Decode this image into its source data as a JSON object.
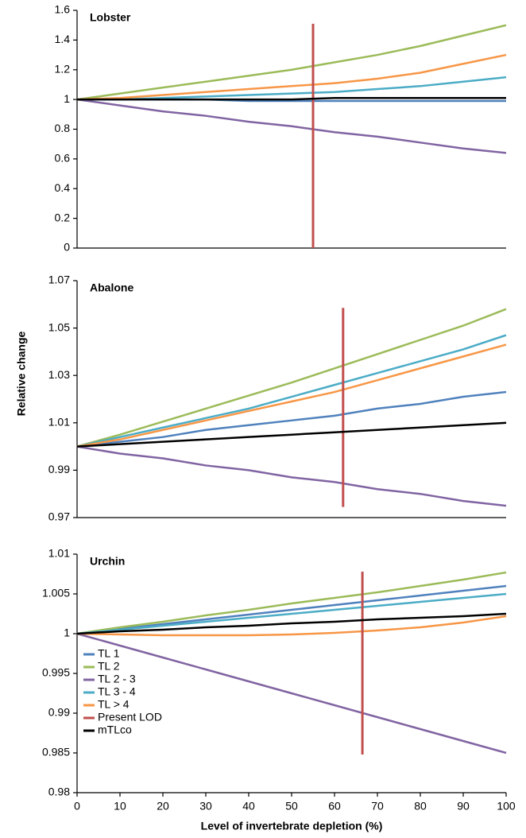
{
  "chart_data": [
    {
      "type": "line",
      "title": "Lobster",
      "x": [
        0,
        10,
        20,
        30,
        40,
        50,
        60,
        70,
        80,
        90,
        100
      ],
      "xlim": [
        0,
        100
      ],
      "ylim": [
        0,
        1.6
      ],
      "yticks": [
        0,
        0.2,
        0.4,
        0.6,
        0.8,
        1,
        1.2,
        1.4,
        1.6
      ],
      "series": [
        {
          "name": "TL 1",
          "color": "#4f81bd",
          "values": [
            1.0,
            1.0,
            1.0,
            1.0,
            0.99,
            0.99,
            0.99,
            0.99,
            0.99,
            0.99,
            0.99
          ]
        },
        {
          "name": "TL 2",
          "color": "#9bbb59",
          "values": [
            1.0,
            1.04,
            1.08,
            1.12,
            1.16,
            1.2,
            1.25,
            1.3,
            1.36,
            1.43,
            1.5
          ]
        },
        {
          "name": "TL 2 - 3",
          "color": "#8064a2",
          "values": [
            1.0,
            0.96,
            0.92,
            0.89,
            0.85,
            0.82,
            0.78,
            0.75,
            0.71,
            0.67,
            0.64
          ]
        },
        {
          "name": "TL 3 - 4",
          "color": "#4bacc6",
          "values": [
            1.0,
            1.0,
            1.01,
            1.02,
            1.03,
            1.04,
            1.05,
            1.07,
            1.09,
            1.12,
            1.15
          ]
        },
        {
          "name": "TL > 4",
          "color": "#f79646",
          "values": [
            1.0,
            1.01,
            1.03,
            1.05,
            1.07,
            1.09,
            1.11,
            1.14,
            1.18,
            1.24,
            1.3
          ]
        },
        {
          "name": "Present LOD",
          "color": "#c0504d",
          "x": [
            55,
            55
          ],
          "values": [
            0,
            1.51
          ]
        },
        {
          "name": "mTLco",
          "color": "#000000",
          "values": [
            1.0,
            1.0,
            1.0,
            1.0,
            1.0,
            1.0,
            1.01,
            1.01,
            1.01,
            1.01,
            1.01
          ]
        }
      ]
    },
    {
      "type": "line",
      "title": "Abalone",
      "ylabel": "Relative change",
      "x": [
        0,
        10,
        20,
        30,
        40,
        50,
        60,
        70,
        80,
        90,
        100
      ],
      "xlim": [
        0,
        100
      ],
      "ylim": [
        0.97,
        1.07
      ],
      "yticks": [
        0.97,
        0.99,
        1.01,
        1.03,
        1.05,
        1.07
      ],
      "series": [
        {
          "name": "TL 1",
          "color": "#4f81bd",
          "values": [
            1.0,
            1.002,
            1.004,
            1.007,
            1.009,
            1.011,
            1.013,
            1.016,
            1.018,
            1.021,
            1.023
          ]
        },
        {
          "name": "TL 2",
          "color": "#9bbb59",
          "values": [
            1.0,
            1.005,
            1.0105,
            1.016,
            1.0215,
            1.027,
            1.033,
            1.039,
            1.045,
            1.051,
            1.058
          ]
        },
        {
          "name": "TL 2 - 3",
          "color": "#8064a2",
          "values": [
            1.0,
            0.997,
            0.995,
            0.992,
            0.99,
            0.987,
            0.985,
            0.982,
            0.98,
            0.977,
            0.975
          ]
        },
        {
          "name": "TL 3 - 4",
          "color": "#4bacc6",
          "values": [
            1.0,
            1.004,
            1.008,
            1.012,
            1.016,
            1.021,
            1.026,
            1.031,
            1.036,
            1.041,
            1.047
          ]
        },
        {
          "name": "TL > 4",
          "color": "#f79646",
          "values": [
            1.0,
            1.003,
            1.007,
            1.011,
            1.015,
            1.019,
            1.023,
            1.028,
            1.033,
            1.038,
            1.043
          ]
        },
        {
          "name": "Present LOD",
          "color": "#c0504d",
          "x": [
            62,
            62
          ],
          "values": [
            0.9745,
            1.0585
          ]
        },
        {
          "name": "mTLco",
          "color": "#000000",
          "values": [
            1.0,
            1.001,
            1.002,
            1.003,
            1.004,
            1.005,
            1.006,
            1.007,
            1.008,
            1.009,
            1.01
          ]
        }
      ]
    },
    {
      "type": "line",
      "title": "Urchin",
      "xlabel": "Level of invertebrate depletion (%)",
      "legend": "lower left",
      "x": [
        0,
        10,
        20,
        30,
        40,
        50,
        60,
        70,
        80,
        90,
        100
      ],
      "xlim": [
        0,
        100
      ],
      "xticks": [
        0,
        10,
        20,
        30,
        40,
        50,
        60,
        70,
        80,
        90,
        100
      ],
      "ylim": [
        0.98,
        1.01
      ],
      "yticks": [
        0.98,
        0.985,
        0.99,
        0.995,
        1,
        1.005,
        1.01
      ],
      "series": [
        {
          "name": "TL 1",
          "color": "#4f81bd",
          "values": [
            1.0,
            1.0006,
            1.0012,
            1.0018,
            1.0024,
            1.003,
            1.0036,
            1.0042,
            1.0048,
            1.0054,
            1.006
          ]
        },
        {
          "name": "TL 2",
          "color": "#9bbb59",
          "values": [
            1.0,
            1.0008,
            1.0015,
            1.0023,
            1.003,
            1.0038,
            1.0045,
            1.0052,
            1.006,
            1.0068,
            1.0077
          ]
        },
        {
          "name": "TL 2 - 3",
          "color": "#8064a2",
          "values": [
            1.0,
            0.9985,
            0.997,
            0.9955,
            0.994,
            0.9925,
            0.991,
            0.9895,
            0.988,
            0.9865,
            0.985
          ]
        },
        {
          "name": "TL 3 - 4",
          "color": "#4bacc6",
          "values": [
            1.0,
            1.0005,
            1.001,
            1.0015,
            1.002,
            1.0025,
            1.003,
            1.0035,
            1.004,
            1.0045,
            1.005
          ]
        },
        {
          "name": "TL > 4",
          "color": "#f79646",
          "values": [
            1.0,
            0.9999,
            0.9998,
            0.9998,
            0.9998,
            0.9999,
            1.0001,
            1.0004,
            1.0008,
            1.0014,
            1.0022
          ]
        },
        {
          "name": "Present LOD",
          "color": "#c0504d",
          "x": [
            66.5,
            66.5
          ],
          "values": [
            0.9848,
            1.0078
          ]
        },
        {
          "name": "mTLco",
          "color": "#000000",
          "values": [
            1.0,
            1.0003,
            1.0005,
            1.0008,
            1.001,
            1.0013,
            1.0015,
            1.0018,
            1.002,
            1.0022,
            1.0025
          ]
        }
      ]
    }
  ]
}
